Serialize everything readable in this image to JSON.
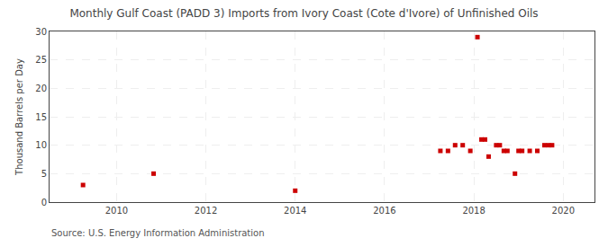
{
  "chart_data": {
    "type": "scatter",
    "title": "Monthly Gulf Coast (PADD 3) Imports from Ivory Coast (Cote d'Ivore) of Unfinished Oils",
    "ylabel": "Thousand Barrels per Day",
    "annotations": [
      "Source: U.S. Energy Information Administration"
    ],
    "color": "#cc0000",
    "marker": "square",
    "grid": true,
    "xlim": [
      2008.5,
      2020.7
    ],
    "ylim": [
      0,
      30
    ],
    "xticks": [
      2010,
      2012,
      2014,
      2016,
      2018,
      2020
    ],
    "yticks": [
      0,
      5,
      10,
      15,
      20,
      25,
      30
    ],
    "x": [
      2009.25,
      2010.83,
      2014.0,
      2017.25,
      2017.42,
      2017.58,
      2017.75,
      2017.92,
      2018.08,
      2018.17,
      2018.25,
      2018.33,
      2018.5,
      2018.58,
      2018.67,
      2018.75,
      2018.92,
      2019.0,
      2019.08,
      2019.25,
      2019.42,
      2019.58,
      2019.67,
      2019.75
    ],
    "values": [
      3,
      5,
      2,
      9,
      9,
      10,
      10,
      9,
      29,
      11,
      11,
      8,
      10,
      10,
      9,
      9,
      5,
      9,
      9,
      9,
      9,
      10,
      10,
      10
    ]
  }
}
